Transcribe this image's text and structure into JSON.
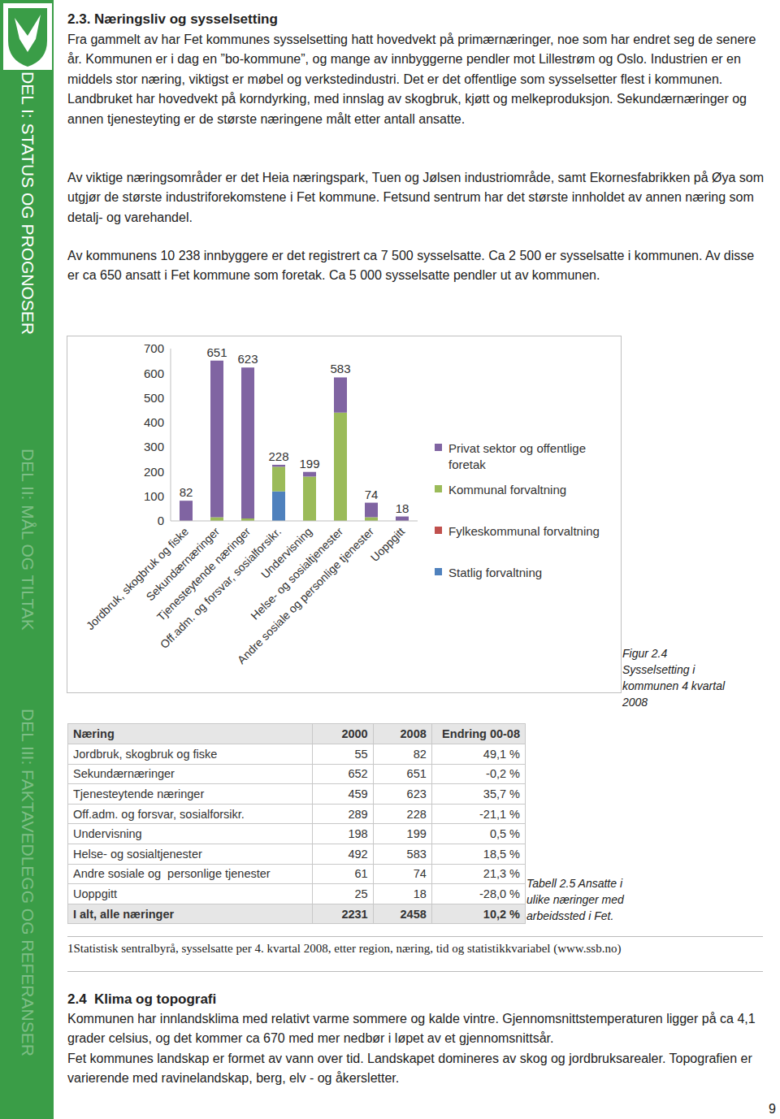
{
  "sidebar": {
    "tabs": [
      "DEL I: STATUS OG PROGNOSER",
      "DEL II: MÅL OG TILTAK",
      "DEL III: FAKTAVEDLEGG OG REFERANSER"
    ]
  },
  "section_2_3": {
    "heading": "2.3. Næringsliv og sysselsetting",
    "paragraphs": [
      "Fra gammelt av har Fet kommunes sysselsetting hatt hovedvekt på primærnæringer, noe som har endret seg de senere år. Kommunen er i dag en ”bo-kommune”, og mange av innbyggerne pendler mot Lillestrøm og Oslo. Industrien er en middels stor næring, viktigst er møbel og verkstedindustri. Det er det offentlige som sysselsetter flest i kommunen. Landbruket har hovedvekt på korndyrking, med innslag av skogbruk, kjøtt og melkeproduksjon. Sekundærnæringer og annen tjenesteyting er de største næringene målt etter antall ansatte.",
      "Av viktige næringsområder er det Heia næringspark, Tuen og Jølsen industriområde, samt Ekornesfabrikken på Øya som utgjør de største industriforekomstene i Fet kommune. Fetsund sentrum har det største innholdet av annen næring som detalj- og varehandel.",
      "Av kommunens 10 238 innbyggere er det registrert ca 7 500 sysselsatte. Ca 2 500 er sysselsatte i kommunen. Av disse er ca 650 ansatt i Fet kommune som foretak. Ca 5 000 sysselsatte pendler ut av kommunen."
    ]
  },
  "chart_data": {
    "type": "bar",
    "stacked": true,
    "categories": [
      "Jordbruk, skogbruk og fiske",
      "Sekundærnæringer",
      "Tjenesteytende næringer",
      "Off.adm. og forsvar, sosialforsikr.",
      "Undervisning",
      "Helse- og sosialtjenester",
      "Andre sosiale og personlige tjenester",
      "Uoppgitt"
    ],
    "series": [
      {
        "name": "Statlig forvaltning",
        "color": "#4f81bd",
        "values": [
          0,
          0,
          0,
          120,
          0,
          0,
          0,
          0
        ]
      },
      {
        "name": "Fylkeskommunal forvaltning",
        "color": "#c0504d",
        "values": [
          0,
          0,
          0,
          0,
          0,
          0,
          0,
          0
        ]
      },
      {
        "name": "Kommunal forvaltning",
        "color": "#9bbb59",
        "values": [
          0,
          15,
          10,
          100,
          180,
          440,
          15,
          0
        ]
      },
      {
        "name": "Privat sektor og offentlige foretak",
        "color": "#8064a2",
        "values": [
          82,
          636,
          613,
          8,
          19,
          143,
          59,
          18
        ]
      }
    ],
    "totals": [
      82,
      651,
      623,
      228,
      199,
      583,
      74,
      18
    ],
    "ylim": [
      0,
      700
    ],
    "yticks": [
      0,
      100,
      200,
      300,
      400,
      500,
      600,
      700
    ],
    "grid": false,
    "legend": "right"
  },
  "figure_caption": "Figur 2.4 Sysselsetting i kommunen 4 kvartal 2008",
  "table": {
    "header": [
      "Næring",
      "2000",
      "2008",
      "Endring 00-08"
    ],
    "rows": [
      [
        "Jordbruk, skogbruk og fiske",
        "55",
        "82",
        "49,1 %"
      ],
      [
        "Sekundærnæringer",
        "652",
        "651",
        "-0,2 %"
      ],
      [
        "Tjenesteytende næringer",
        "459",
        "623",
        "35,7 %"
      ],
      [
        "Off.adm. og forsvar, sosialforsikr.",
        "289",
        "228",
        "-21,1 %"
      ],
      [
        "Undervisning",
        "198",
        "199",
        "0,5 %"
      ],
      [
        "Helse- og sosialtjenester",
        "492",
        "583",
        "18,5 %"
      ],
      [
        "Andre sosiale og  personlige tjenester",
        "61",
        "74",
        "21,3 %"
      ],
      [
        "Uoppgitt",
        "25",
        "18",
        "-28,0 %"
      ],
      [
        "I alt, alle næringer",
        "2231",
        "2458",
        "10,2 %"
      ]
    ],
    "caption": "Tabell 2.5 Ansatte i ulike næringer med arbeidssted i Fet."
  },
  "footnote": "1Statistisk sentralbyrå, sysselsatte per 4. kvartal 2008, etter region, næring, tid og statistikkvariabel (www.ssb.no)",
  "section_2_4": {
    "heading": "2.4  Klima og topografi",
    "paragraphs": [
      "Kommunen har innlandsklima med relativt varme sommere og kalde vintre. Gjennomsnittstemperaturen ligger på ca 4,1 grader celsius, og det kommer ca 670 med mer nedbør i løpet av et gjennomsnittsår.",
      "Fet kommunes landskap er formet av vann over tid. Landskapet domineres av skog og jordbruksarealer. Topografien er varierende med ravinelandskap, berg, elv - og åkersletter."
    ]
  },
  "page_number": "9"
}
